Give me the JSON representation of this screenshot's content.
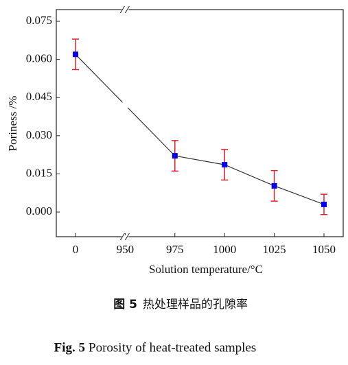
{
  "chart_data": {
    "type": "line",
    "x_label": "Solution temperature/°C",
    "y_label": "Poriness /%",
    "xtick_labels": [
      "0",
      "950",
      "975",
      "1000",
      "1025",
      "1050"
    ],
    "categories": [
      "0",
      "975",
      "1000",
      "1025",
      "1050"
    ],
    "series": [
      {
        "color": "#0000ee",
        "line_color": "#333333",
        "error_color": "#e0202a",
        "values": [
          0.062,
          0.0221,
          0.0186,
          0.0103,
          0.003
        ],
        "errors": [
          0.006,
          0.006,
          0.006,
          0.006,
          0.004
        ]
      }
    ],
    "ylim": [
      -0.0097,
      0.0796
    ],
    "yticks": [
      {
        "value": 0,
        "label": "0.000"
      },
      {
        "value": 0.015,
        "label": "0.015"
      },
      {
        "value": 0.03,
        "label": "0.030"
      },
      {
        "value": 0.045,
        "label": "0.045"
      },
      {
        "value": 0.06,
        "label": "0.060"
      },
      {
        "value": 0.075,
        "label": "0.075"
      }
    ]
  },
  "caption": {
    "cn_label": "图 5",
    "cn_text": "热处理样品的孔隙率",
    "en_label": "Fig. 5",
    "en_text": "Porosity of heat-treated samples"
  }
}
